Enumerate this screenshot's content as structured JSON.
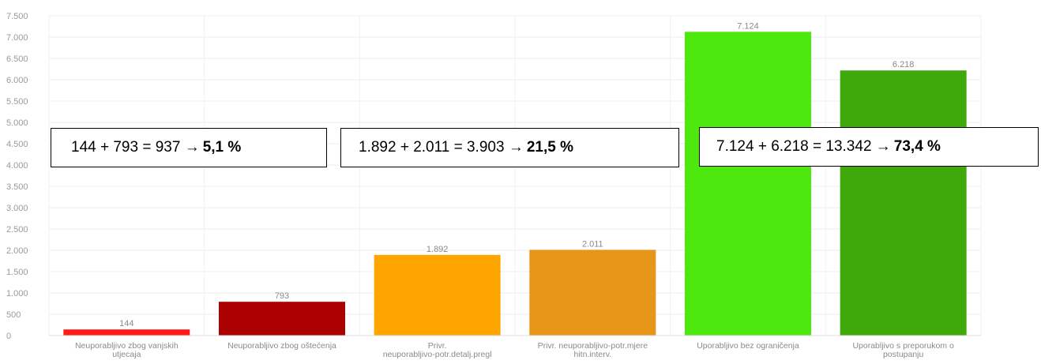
{
  "chart_data": {
    "type": "bar",
    "categories": [
      [
        "Neuporabljivo zbog vanjskih",
        "utjecaja"
      ],
      [
        "Neuporabljivo zbog oštećenja"
      ],
      [
        "Privr.",
        "neuporabljivo-potr.detalj.pregl"
      ],
      [
        "Privr. neuporabljivo-potr.mjere",
        "hitn.interv."
      ],
      [
        "Uporabljivo bez ograničenja"
      ],
      [
        "Uporabljivo s preporukom o",
        "postupanju"
      ]
    ],
    "values": [
      144,
      793,
      1892,
      2011,
      7124,
      6218
    ],
    "value_labels": [
      "144",
      "793",
      "1.892",
      "2.011",
      "7.124",
      "6.218"
    ],
    "colors": [
      "#ff1a1a",
      "#aa0000",
      "#ffa500",
      "#e8961a",
      "#4de80d",
      "#3fa80a"
    ],
    "ylim": [
      0,
      7500
    ],
    "yticks": [
      0,
      500,
      1000,
      1500,
      2000,
      2500,
      3000,
      3500,
      4000,
      4500,
      5000,
      5500,
      6000,
      6500,
      7000,
      7500
    ],
    "ytick_labels": [
      "0",
      "500",
      "1.000",
      "1.500",
      "2.000",
      "2.500",
      "3.000",
      "3.500",
      "4.000",
      "4.500",
      "5.000",
      "5.500",
      "6.000",
      "6.500",
      "7.000",
      "7.500"
    ],
    "grid": true,
    "title": "",
    "xlabel": "",
    "ylabel": ""
  },
  "annotations": [
    {
      "text": "144 + 793 = 937 →",
      "bold": "5,1 %"
    },
    {
      "text": "1.892 + 2.011 = 3.903 →",
      "bold": "21,5 %"
    },
    {
      "text": "7.124 + 6.218 = 13.342 →",
      "bold": "73,4 %"
    }
  ]
}
